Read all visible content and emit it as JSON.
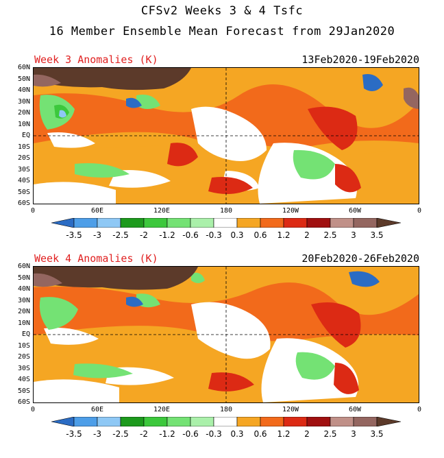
{
  "title_line1": "CFSv2 Weeks 3 & 4 Tsfc",
  "title_line2": "16 Member Ensemble Mean Forecast from 29Jan2020",
  "panels": [
    {
      "label": "Week 3 Anomalies (K)",
      "dates": "13Feb2020-19Feb2020"
    },
    {
      "label": "Week 4 Anomalies (K)",
      "dates": "20Feb2020-26Feb2020"
    }
  ],
  "lat_labels": [
    "60N",
    "50N",
    "40N",
    "30N",
    "20N",
    "10N",
    "EQ",
    "10S",
    "20S",
    "30S",
    "40S",
    "50S",
    "60S"
  ],
  "lon_labels": [
    "0",
    "60E",
    "120E",
    "180",
    "120W",
    "60W",
    "0"
  ],
  "colorbar": {
    "labels": [
      "-3.5",
      "-3",
      "-2.5",
      "-2",
      "-1.2",
      "-0.6",
      "-0.3",
      "0.3",
      "0.6",
      "1.2",
      "2",
      "2.5",
      "3",
      "3.5"
    ],
    "colors": [
      "#2b6cc4",
      "#4d9ee8",
      "#8ec8f5",
      "#1d9a1d",
      "#3cc83c",
      "#74e274",
      "#aaf0aa",
      "#ffffff",
      "#f5a623",
      "#f26a1b",
      "#dc2a14",
      "#a01010",
      "#c09088",
      "#946660",
      "#5c3a2a"
    ]
  },
  "colors": {
    "title_text": "#000000",
    "panel_label_text": "#e02020"
  }
}
